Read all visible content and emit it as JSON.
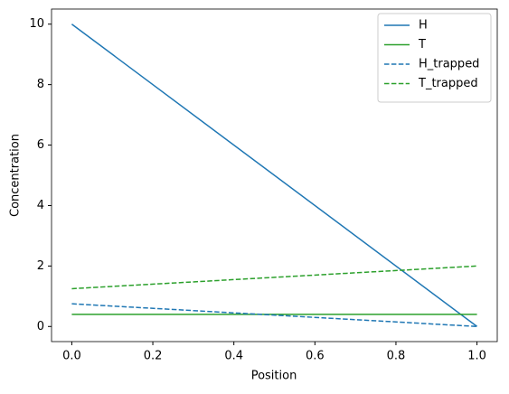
{
  "chart_data": {
    "type": "line",
    "xlabel": "Position",
    "ylabel": "Concentration",
    "x": [
      0,
      1
    ],
    "series": [
      {
        "name": "H",
        "color": "#1f77b4",
        "linestyle": "solid",
        "values": [
          10,
          0
        ]
      },
      {
        "name": "T",
        "color": "#2ca02c",
        "linestyle": "solid",
        "values": [
          0.4,
          0.4
        ]
      },
      {
        "name": "H_trapped",
        "color": "#1f77b4",
        "linestyle": "dashed",
        "values": [
          0.75,
          0
        ]
      },
      {
        "name": "T_trapped",
        "color": "#2ca02c",
        "linestyle": "dashed",
        "values": [
          1.25,
          2.0
        ]
      }
    ],
    "xlim": [
      -0.05,
      1.05
    ],
    "ylim": [
      -0.5,
      10.5
    ],
    "xticks": [
      {
        "value": 0,
        "label": "0.0"
      },
      {
        "value": 0.2,
        "label": "0.2"
      },
      {
        "value": 0.4,
        "label": "0.4"
      },
      {
        "value": 0.6,
        "label": "0.6"
      },
      {
        "value": 0.8,
        "label": "0.8"
      },
      {
        "value": 1,
        "label": "1.0"
      }
    ],
    "yticks": [
      0,
      2,
      4,
      6,
      8,
      10
    ],
    "grid": false,
    "legend": "upper right"
  }
}
